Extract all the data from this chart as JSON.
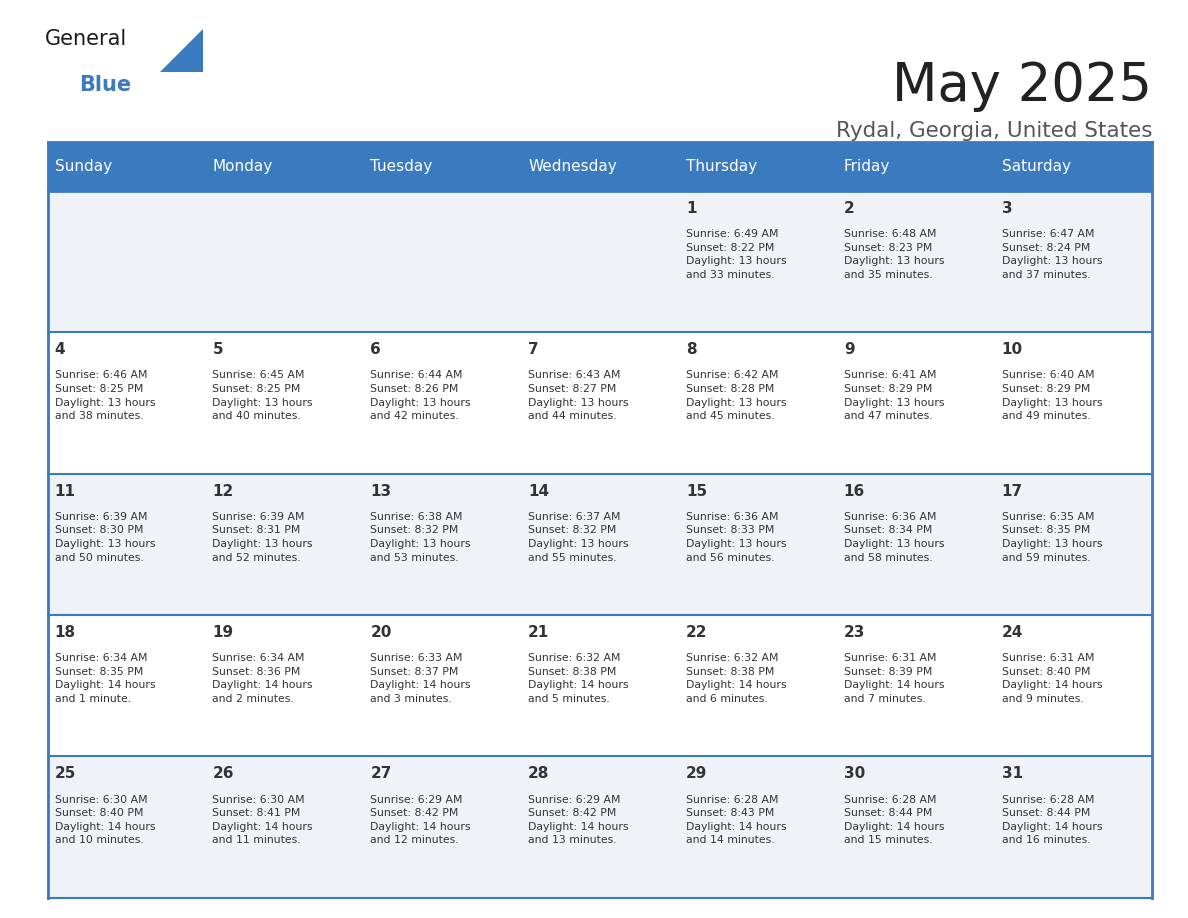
{
  "title": "May 2025",
  "subtitle": "Rydal, Georgia, United States",
  "days_of_week": [
    "Sunday",
    "Monday",
    "Tuesday",
    "Wednesday",
    "Thursday",
    "Friday",
    "Saturday"
  ],
  "header_bg": "#3a7abf",
  "header_text": "#ffffff",
  "row_bg_odd": "#eff3f8",
  "row_bg_even": "#ffffff",
  "border_color": "#3a7abf",
  "day_number_color": "#333333",
  "cell_text_color": "#333333",
  "title_color": "#222222",
  "subtitle_color": "#555555",
  "calendar": [
    [
      {
        "day": null
      },
      {
        "day": null
      },
      {
        "day": null
      },
      {
        "day": null
      },
      {
        "day": 1,
        "sunrise": "6:49 AM",
        "sunset": "8:22 PM",
        "daylight": "13 hours and 33 minutes."
      },
      {
        "day": 2,
        "sunrise": "6:48 AM",
        "sunset": "8:23 PM",
        "daylight": "13 hours and 35 minutes."
      },
      {
        "day": 3,
        "sunrise": "6:47 AM",
        "sunset": "8:24 PM",
        "daylight": "13 hours and 37 minutes."
      }
    ],
    [
      {
        "day": 4,
        "sunrise": "6:46 AM",
        "sunset": "8:25 PM",
        "daylight": "13 hours and 38 minutes."
      },
      {
        "day": 5,
        "sunrise": "6:45 AM",
        "sunset": "8:25 PM",
        "daylight": "13 hours and 40 minutes."
      },
      {
        "day": 6,
        "sunrise": "6:44 AM",
        "sunset": "8:26 PM",
        "daylight": "13 hours and 42 minutes."
      },
      {
        "day": 7,
        "sunrise": "6:43 AM",
        "sunset": "8:27 PM",
        "daylight": "13 hours and 44 minutes."
      },
      {
        "day": 8,
        "sunrise": "6:42 AM",
        "sunset": "8:28 PM",
        "daylight": "13 hours and 45 minutes."
      },
      {
        "day": 9,
        "sunrise": "6:41 AM",
        "sunset": "8:29 PM",
        "daylight": "13 hours and 47 minutes."
      },
      {
        "day": 10,
        "sunrise": "6:40 AM",
        "sunset": "8:29 PM",
        "daylight": "13 hours and 49 minutes."
      }
    ],
    [
      {
        "day": 11,
        "sunrise": "6:39 AM",
        "sunset": "8:30 PM",
        "daylight": "13 hours and 50 minutes."
      },
      {
        "day": 12,
        "sunrise": "6:39 AM",
        "sunset": "8:31 PM",
        "daylight": "13 hours and 52 minutes."
      },
      {
        "day": 13,
        "sunrise": "6:38 AM",
        "sunset": "8:32 PM",
        "daylight": "13 hours and 53 minutes."
      },
      {
        "day": 14,
        "sunrise": "6:37 AM",
        "sunset": "8:32 PM",
        "daylight": "13 hours and 55 minutes."
      },
      {
        "day": 15,
        "sunrise": "6:36 AM",
        "sunset": "8:33 PM",
        "daylight": "13 hours and 56 minutes."
      },
      {
        "day": 16,
        "sunrise": "6:36 AM",
        "sunset": "8:34 PM",
        "daylight": "13 hours and 58 minutes."
      },
      {
        "day": 17,
        "sunrise": "6:35 AM",
        "sunset": "8:35 PM",
        "daylight": "13 hours and 59 minutes."
      }
    ],
    [
      {
        "day": 18,
        "sunrise": "6:34 AM",
        "sunset": "8:35 PM",
        "daylight": "14 hours and 1 minute."
      },
      {
        "day": 19,
        "sunrise": "6:34 AM",
        "sunset": "8:36 PM",
        "daylight": "14 hours and 2 minutes."
      },
      {
        "day": 20,
        "sunrise": "6:33 AM",
        "sunset": "8:37 PM",
        "daylight": "14 hours and 3 minutes."
      },
      {
        "day": 21,
        "sunrise": "6:32 AM",
        "sunset": "8:38 PM",
        "daylight": "14 hours and 5 minutes."
      },
      {
        "day": 22,
        "sunrise": "6:32 AM",
        "sunset": "8:38 PM",
        "daylight": "14 hours and 6 minutes."
      },
      {
        "day": 23,
        "sunrise": "6:31 AM",
        "sunset": "8:39 PM",
        "daylight": "14 hours and 7 minutes."
      },
      {
        "day": 24,
        "sunrise": "6:31 AM",
        "sunset": "8:40 PM",
        "daylight": "14 hours and 9 minutes."
      }
    ],
    [
      {
        "day": 25,
        "sunrise": "6:30 AM",
        "sunset": "8:40 PM",
        "daylight": "14 hours and 10 minutes."
      },
      {
        "day": 26,
        "sunrise": "6:30 AM",
        "sunset": "8:41 PM",
        "daylight": "14 hours and 11 minutes."
      },
      {
        "day": 27,
        "sunrise": "6:29 AM",
        "sunset": "8:42 PM",
        "daylight": "14 hours and 12 minutes."
      },
      {
        "day": 28,
        "sunrise": "6:29 AM",
        "sunset": "8:42 PM",
        "daylight": "14 hours and 13 minutes."
      },
      {
        "day": 29,
        "sunrise": "6:28 AM",
        "sunset": "8:43 PM",
        "daylight": "14 hours and 14 minutes."
      },
      {
        "day": 30,
        "sunrise": "6:28 AM",
        "sunset": "8:44 PM",
        "daylight": "14 hours and 15 minutes."
      },
      {
        "day": 31,
        "sunrise": "6:28 AM",
        "sunset": "8:44 PM",
        "daylight": "14 hours and 16 minutes."
      }
    ]
  ]
}
